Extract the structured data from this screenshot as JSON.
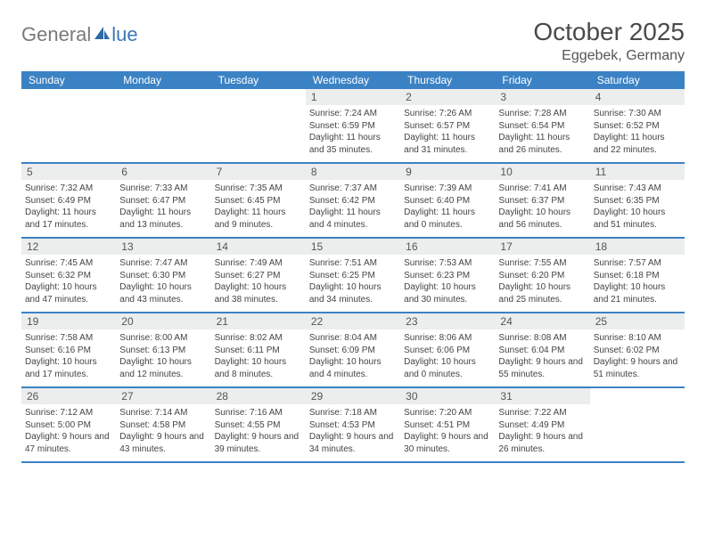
{
  "logo": {
    "word1": "General",
    "word2": "lue"
  },
  "title": "October 2025",
  "location": "Eggebek, Germany",
  "colors": {
    "header_bg": "#3b82c4",
    "header_text": "#ffffff",
    "daynum_bg": "#eceded",
    "border": "#3b82c4",
    "logo_gray": "#7a7a7a",
    "logo_blue": "#3b77b7"
  },
  "day_headers": [
    "Sunday",
    "Monday",
    "Tuesday",
    "Wednesday",
    "Thursday",
    "Friday",
    "Saturday"
  ],
  "weeks": [
    [
      {
        "n": "",
        "sr": "",
        "ss": "",
        "dl": ""
      },
      {
        "n": "",
        "sr": "",
        "ss": "",
        "dl": ""
      },
      {
        "n": "",
        "sr": "",
        "ss": "",
        "dl": ""
      },
      {
        "n": "1",
        "sr": "7:24 AM",
        "ss": "6:59 PM",
        "dl": "11 hours and 35 minutes."
      },
      {
        "n": "2",
        "sr": "7:26 AM",
        "ss": "6:57 PM",
        "dl": "11 hours and 31 minutes."
      },
      {
        "n": "3",
        "sr": "7:28 AM",
        "ss": "6:54 PM",
        "dl": "11 hours and 26 minutes."
      },
      {
        "n": "4",
        "sr": "7:30 AM",
        "ss": "6:52 PM",
        "dl": "11 hours and 22 minutes."
      }
    ],
    [
      {
        "n": "5",
        "sr": "7:32 AM",
        "ss": "6:49 PM",
        "dl": "11 hours and 17 minutes."
      },
      {
        "n": "6",
        "sr": "7:33 AM",
        "ss": "6:47 PM",
        "dl": "11 hours and 13 minutes."
      },
      {
        "n": "7",
        "sr": "7:35 AM",
        "ss": "6:45 PM",
        "dl": "11 hours and 9 minutes."
      },
      {
        "n": "8",
        "sr": "7:37 AM",
        "ss": "6:42 PM",
        "dl": "11 hours and 4 minutes."
      },
      {
        "n": "9",
        "sr": "7:39 AM",
        "ss": "6:40 PM",
        "dl": "11 hours and 0 minutes."
      },
      {
        "n": "10",
        "sr": "7:41 AM",
        "ss": "6:37 PM",
        "dl": "10 hours and 56 minutes."
      },
      {
        "n": "11",
        "sr": "7:43 AM",
        "ss": "6:35 PM",
        "dl": "10 hours and 51 minutes."
      }
    ],
    [
      {
        "n": "12",
        "sr": "7:45 AM",
        "ss": "6:32 PM",
        "dl": "10 hours and 47 minutes."
      },
      {
        "n": "13",
        "sr": "7:47 AM",
        "ss": "6:30 PM",
        "dl": "10 hours and 43 minutes."
      },
      {
        "n": "14",
        "sr": "7:49 AM",
        "ss": "6:27 PM",
        "dl": "10 hours and 38 minutes."
      },
      {
        "n": "15",
        "sr": "7:51 AM",
        "ss": "6:25 PM",
        "dl": "10 hours and 34 minutes."
      },
      {
        "n": "16",
        "sr": "7:53 AM",
        "ss": "6:23 PM",
        "dl": "10 hours and 30 minutes."
      },
      {
        "n": "17",
        "sr": "7:55 AM",
        "ss": "6:20 PM",
        "dl": "10 hours and 25 minutes."
      },
      {
        "n": "18",
        "sr": "7:57 AM",
        "ss": "6:18 PM",
        "dl": "10 hours and 21 minutes."
      }
    ],
    [
      {
        "n": "19",
        "sr": "7:58 AM",
        "ss": "6:16 PM",
        "dl": "10 hours and 17 minutes."
      },
      {
        "n": "20",
        "sr": "8:00 AM",
        "ss": "6:13 PM",
        "dl": "10 hours and 12 minutes."
      },
      {
        "n": "21",
        "sr": "8:02 AM",
        "ss": "6:11 PM",
        "dl": "10 hours and 8 minutes."
      },
      {
        "n": "22",
        "sr": "8:04 AM",
        "ss": "6:09 PM",
        "dl": "10 hours and 4 minutes."
      },
      {
        "n": "23",
        "sr": "8:06 AM",
        "ss": "6:06 PM",
        "dl": "10 hours and 0 minutes."
      },
      {
        "n": "24",
        "sr": "8:08 AM",
        "ss": "6:04 PM",
        "dl": "9 hours and 55 minutes."
      },
      {
        "n": "25",
        "sr": "8:10 AM",
        "ss": "6:02 PM",
        "dl": "9 hours and 51 minutes."
      }
    ],
    [
      {
        "n": "26",
        "sr": "7:12 AM",
        "ss": "5:00 PM",
        "dl": "9 hours and 47 minutes."
      },
      {
        "n": "27",
        "sr": "7:14 AM",
        "ss": "4:58 PM",
        "dl": "9 hours and 43 minutes."
      },
      {
        "n": "28",
        "sr": "7:16 AM",
        "ss": "4:55 PM",
        "dl": "9 hours and 39 minutes."
      },
      {
        "n": "29",
        "sr": "7:18 AM",
        "ss": "4:53 PM",
        "dl": "9 hours and 34 minutes."
      },
      {
        "n": "30",
        "sr": "7:20 AM",
        "ss": "4:51 PM",
        "dl": "9 hours and 30 minutes."
      },
      {
        "n": "31",
        "sr": "7:22 AM",
        "ss": "4:49 PM",
        "dl": "9 hours and 26 minutes."
      },
      {
        "n": "",
        "sr": "",
        "ss": "",
        "dl": ""
      }
    ]
  ],
  "labels": {
    "sunrise": "Sunrise:",
    "sunset": "Sunset:",
    "daylight": "Daylight:"
  }
}
